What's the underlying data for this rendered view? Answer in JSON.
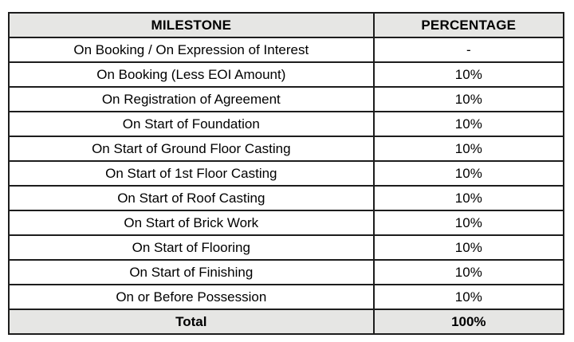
{
  "chart_data": {
    "type": "table",
    "title": "",
    "columns": [
      "MILESTONE",
      "PERCENTAGE"
    ],
    "rows": [
      [
        "On Booking / On Expression of Interest",
        "-"
      ],
      [
        "On Booking (Less EOI Amount)",
        "10%"
      ],
      [
        "On Registration of Agreement",
        "10%"
      ],
      [
        "On Start of Foundation",
        "10%"
      ],
      [
        "On Start of Ground Floor Casting",
        "10%"
      ],
      [
        "On Start of 1st Floor Casting",
        "10%"
      ],
      [
        "On Start of Roof Casting",
        "10%"
      ],
      [
        "On Start of Brick Work",
        "10%"
      ],
      [
        "On Start of Flooring",
        "10%"
      ],
      [
        "On Start of Finishing",
        "10%"
      ],
      [
        "On or Before Possession",
        "10%"
      ]
    ],
    "footer": [
      "Total",
      "100%"
    ]
  },
  "colors": {
    "header_bg": "#e6e6e4",
    "footer_bg": "#e6e6e4",
    "row_bg": "#ffffff",
    "border": "#1d1d1d",
    "text": "#000000"
  }
}
